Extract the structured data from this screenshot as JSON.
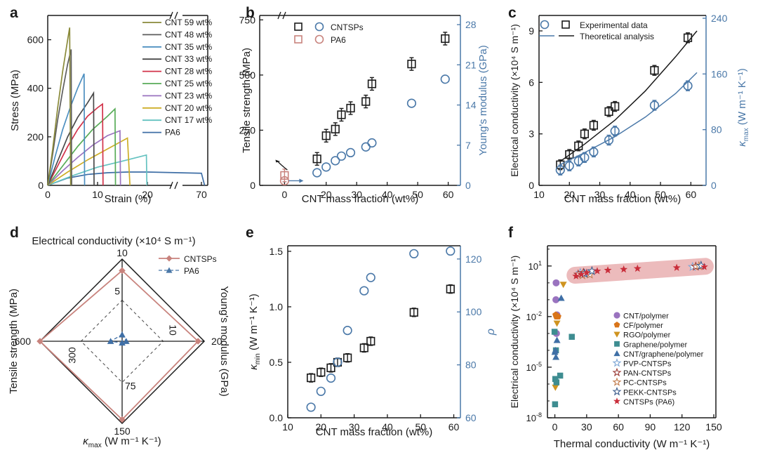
{
  "panel_labels": [
    "a",
    "b",
    "c",
    "d",
    "e",
    "f"
  ],
  "colors": {
    "black": "#1a1a1a",
    "blue": "#4a78a8",
    "pink": "#c8837d",
    "rose": "#b76f6c",
    "star": "#c92d3a",
    "band": "#eab4b5"
  },
  "chart_data": [
    {
      "id": "a",
      "type": "line",
      "xlabel": "Strain (%)",
      "ylabel": "Stress (MPa)",
      "xticks": [
        "0",
        "10",
        "20",
        "70"
      ],
      "yticks": [
        "0",
        "200",
        "400",
        "600"
      ],
      "xlim": [
        0,
        72
      ],
      "ylim": [
        0,
        700
      ],
      "axis_break": "x between 20 and 70",
      "legend_position": "top-right",
      "series": [
        {
          "name": "CNT 59 wt%",
          "color": "#8a8a3a",
          "x": [
            0,
            1,
            2,
            3,
            4,
            4.4,
            4.6
          ],
          "y": [
            0,
            150,
            320,
            470,
            600,
            650,
            0
          ]
        },
        {
          "name": "CNT 48 wt%",
          "color": "#5e5e5e",
          "x": [
            0,
            1,
            2,
            3,
            4,
            4.7,
            4.8
          ],
          "y": [
            0,
            130,
            270,
            390,
            500,
            560,
            0
          ]
        },
        {
          "name": "CNT 35 wt%",
          "color": "#4d8fc0",
          "x": [
            0,
            1.5,
            3,
            4.5,
            6,
            7.3,
            7.4
          ],
          "y": [
            0,
            120,
            230,
            320,
            400,
            460,
            0
          ]
        },
        {
          "name": "CNT 33 wt%",
          "color": "#4a4a4a",
          "x": [
            0,
            2,
            4,
            6,
            8,
            9.2,
            9.3
          ],
          "y": [
            0,
            100,
            200,
            280,
            340,
            380,
            0
          ]
        },
        {
          "name": "CNT 28 wt%",
          "color": "#d2334a",
          "x": [
            0,
            2,
            4,
            6,
            8,
            10,
            11,
            11.1
          ],
          "y": [
            0,
            80,
            160,
            230,
            285,
            320,
            335,
            0
          ]
        },
        {
          "name": "CNT 25 wt%",
          "color": "#58ac58",
          "x": [
            0,
            3,
            6,
            9,
            12,
            13.5,
            13.6
          ],
          "y": [
            0,
            80,
            160,
            230,
            285,
            315,
            0
          ]
        },
        {
          "name": "CNT 23 wt%",
          "color": "#9a73bf",
          "x": [
            0,
            3,
            6,
            9,
            12,
            14.5,
            14.6
          ],
          "y": [
            0,
            60,
            115,
            165,
            205,
            225,
            0
          ]
        },
        {
          "name": "CNT 20 wt%",
          "color": "#cdae28",
          "x": [
            0,
            4,
            8,
            12,
            16,
            16.5
          ],
          "y": [
            0,
            55,
            105,
            150,
            195,
            0
          ]
        },
        {
          "name": "CNT 17 wt%",
          "color": "#64c2c0",
          "x": [
            0,
            5,
            10,
            15,
            19.8,
            19.9
          ],
          "y": [
            0,
            40,
            75,
            100,
            125,
            0
          ]
        },
        {
          "name": "PA6",
          "color": "#3f6fa6",
          "x": [
            0,
            4,
            8,
            12,
            16,
            20,
            70,
            71
          ],
          "y": [
            0,
            30,
            45,
            52,
            55,
            55,
            50,
            0
          ]
        }
      ]
    },
    {
      "id": "b",
      "type": "scatter",
      "xlabel": "CNT mass fraction (wt%)",
      "ylabel": "Tensile strength (MPa)",
      "y2label": "Young's modulus (GPa)",
      "xticks": [
        "0",
        "20",
        "30",
        "40",
        "50",
        "60"
      ],
      "yticks": [
        "0",
        "250",
        "500",
        "750"
      ],
      "y2ticks": [
        "0",
        "7",
        "14",
        "21",
        "28"
      ],
      "xlim": [
        -3,
        64
      ],
      "ylim": [
        0,
        770
      ],
      "y2lim": [
        0,
        29.6
      ],
      "legend_position": "top-left",
      "series": [
        {
          "name": "CNTSPs",
          "marker": "square",
          "color": "#1a1a1a",
          "axis": "y",
          "x": [
            17,
            20,
            23,
            25,
            28,
            33,
            35,
            48,
            59
          ],
          "y": [
            120,
            225,
            255,
            320,
            350,
            380,
            460,
            550,
            665
          ]
        },
        {
          "name": "CNTSPs",
          "marker": "circle",
          "color": "#4a78a8",
          "axis": "y2",
          "x": [
            17,
            20,
            23,
            25,
            28,
            33,
            35,
            48,
            59
          ],
          "y": [
            2.2,
            3.2,
            4.3,
            5.1,
            5.7,
            6.7,
            7.4,
            14.3,
            18.5
          ]
        },
        {
          "name": "PA6",
          "marker": "square",
          "color": "#c8837d",
          "axis": "y",
          "x": [
            0
          ],
          "y": [
            45
          ]
        },
        {
          "name": "PA6",
          "marker": "circle",
          "color": "#c8837d",
          "axis": "y2",
          "x": [
            0
          ],
          "y": [
            0.8
          ]
        }
      ]
    },
    {
      "id": "c",
      "type": "scatter",
      "xlabel": "CNT mass fraction (wt%)",
      "ylabel": "Electrical conductivity (×10⁴ S m⁻¹)",
      "y2label_prefix": "κ",
      "y2label_sub": "max",
      "y2label_rest": " (W m⁻¹ K⁻¹)",
      "xticks": [
        "10",
        "20",
        "30",
        "40",
        "50",
        "60"
      ],
      "yticks": [
        "0",
        "3",
        "6",
        "9"
      ],
      "y2ticks": [
        "0",
        "80",
        "160",
        "240"
      ],
      "xlim": [
        10,
        65
      ],
      "ylim": [
        0,
        9.9
      ],
      "y2lim": [
        0,
        240
      ],
      "legend_position": "top",
      "legend": [
        "Experimental data",
        "Theoretical analysis"
      ],
      "series": [
        {
          "name": "Experimental data",
          "marker": "square",
          "color": "#1a1a1a",
          "x": [
            17,
            20,
            23,
            25,
            28,
            33,
            35,
            48,
            59
          ],
          "y": [
            1.2,
            1.8,
            2.3,
            3.0,
            3.5,
            4.3,
            4.6,
            6.7,
            8.6
          ]
        },
        {
          "name": "Experimental data",
          "marker": "circle",
          "color": "#4a78a8",
          "axis": "y2",
          "x": [
            17,
            20,
            23,
            25,
            28,
            33,
            35,
            48,
            59
          ],
          "y": [
            22,
            28,
            35,
            40,
            48,
            65,
            78,
            115,
            143
          ]
        },
        {
          "name": "Theoretical analysis",
          "type": "line",
          "color": "#1a1a1a",
          "x": [
            17,
            25,
            35,
            45,
            55,
            62
          ],
          "y": [
            1.4,
            2.4,
            3.8,
            5.5,
            7.5,
            9.0
          ]
        },
        {
          "name": "Theoretical analysis",
          "type": "line",
          "color": "#4a78a8",
          "axis": "y2",
          "x": [
            17,
            25,
            35,
            45,
            55,
            62
          ],
          "y": [
            30,
            47,
            70,
            98,
            132,
            162
          ]
        }
      ]
    },
    {
      "id": "d",
      "type": "radar",
      "axes": [
        {
          "label": "Electrical conductivity (×10⁴ S m⁻¹)",
          "ticks": [
            "5",
            "10"
          ]
        },
        {
          "label": "Young's modulus (GPa)",
          "ticks": [
            "10",
            "20"
          ]
        },
        {
          "label_prefix": "κ",
          "label_sub": "max",
          "label_rest": " (W m⁻¹ K⁻¹)",
          "ticks": [
            "75",
            "150"
          ]
        },
        {
          "label": "Tensile strength (MPa)",
          "ticks": [
            "300",
            "600"
          ]
        }
      ],
      "legend_position": "top-right",
      "series": [
        {
          "name": "CNTSPs",
          "color": "#c8837d",
          "marker": "diamond",
          "values": [
            0.86,
            0.925,
            0.953,
            1.0
          ]
        },
        {
          "name": "PA6",
          "color": "#3f6fa6",
          "marker": "triangle",
          "values": [
            0.08,
            0.05,
            0.02,
            0.14
          ]
        }
      ]
    },
    {
      "id": "e",
      "type": "scatter",
      "xlabel": "CNT mass fraction (wt%)",
      "ylabel_prefix": "κ",
      "ylabel_sub": "min",
      "ylabel_rest": " (W m⁻¹ K⁻¹)",
      "y2label": "ρ",
      "xticks": [
        "10",
        "20",
        "30",
        "40",
        "50",
        "60"
      ],
      "yticks": [
        "0.0",
        "0.5",
        "1.0",
        "1.5"
      ],
      "y2ticks": [
        "60",
        "80",
        "100",
        "120"
      ],
      "xlim": [
        10,
        62
      ],
      "ylim": [
        0,
        1.55
      ],
      "y2lim": [
        60,
        125
      ],
      "series": [
        {
          "name": "κmin",
          "marker": "square",
          "color": "#1a1a1a",
          "x": [
            17,
            20,
            23,
            25,
            28,
            33,
            35,
            48,
            59
          ],
          "y": [
            0.36,
            0.41,
            0.45,
            0.5,
            0.54,
            0.63,
            0.69,
            0.95,
            1.16
          ]
        },
        {
          "name": "ρ",
          "marker": "circle",
          "color": "#4a78a8",
          "axis": "y2",
          "x": [
            17,
            20,
            23,
            25,
            28,
            33,
            35,
            48,
            59
          ],
          "y": [
            64,
            70,
            75,
            81,
            93,
            108,
            113,
            122,
            123
          ]
        }
      ]
    },
    {
      "id": "f",
      "type": "scatter",
      "xlabel": "Thermal conductivity (W m⁻¹ K⁻¹)",
      "ylabel": "Electrical conductivity (×10⁴ S m⁻¹)",
      "xticks": [
        "0",
        "30",
        "60",
        "90",
        "120",
        "150"
      ],
      "yticks": [
        {
          "base": "10",
          "exp": "-8"
        },
        {
          "base": "10",
          "exp": "-5"
        },
        {
          "base": "10",
          "exp": "-2"
        },
        {
          "base": "10",
          "exp": "1"
        }
      ],
      "xlim": [
        -7,
        152
      ],
      "ylim_log10": [
        -8,
        2.2
      ],
      "yscale": "log",
      "legend_position": "lower-right",
      "series": [
        {
          "name": "CNT/polymer",
          "marker": "circle",
          "color": "#9a73bf",
          "x": [
            1,
            2,
            1.5,
            1.2
          ],
          "y_log10": [
            -1,
            -1.9,
            -3,
            0
          ]
        },
        {
          "name": "CF/polymer",
          "marker": "pentagon",
          "color": "#d9751a",
          "x": [
            1.5,
            3,
            0.8
          ],
          "y_log10": [
            -2,
            -2,
            -1.9
          ]
        },
        {
          "name": "RGO/polymer",
          "marker": "triangle-down",
          "color": "#cf9420",
          "x": [
            8,
            2,
            0.5
          ],
          "y_log10": [
            -0.1,
            -2.4,
            -6.2
          ]
        },
        {
          "name": "Graphene/polymer",
          "marker": "square",
          "color": "#3e8d91",
          "x": [
            -0.3,
            1,
            5,
            16,
            0.2,
            0.4,
            1.5
          ],
          "y_log10": [
            -2.9,
            -4,
            -5.5,
            -3.2,
            -7.2,
            -5.7,
            -5.9
          ]
        },
        {
          "name": "CNT/graphene/polymer",
          "marker": "triangle",
          "color": "#3f6fa6",
          "x": [
            6,
            1,
            0.5,
            0,
            2
          ],
          "y_log10": [
            -0.9,
            -4.4,
            -4,
            -4.1,
            -3.4
          ]
        },
        {
          "name": "PVP-CNTSPs",
          "marker": "star-open",
          "color": "#7fa7d6",
          "x": [
            24,
            30,
            130
          ],
          "y_log10": [
            0.6,
            0.55,
            0.95
          ]
        },
        {
          "name": "PAN-CNTSPs",
          "marker": "star-open",
          "color": "#9a3b36",
          "x": [
            22,
            27,
            133
          ],
          "y_log10": [
            0.5,
            0.6,
            0.97
          ]
        },
        {
          "name": "PC-CNTSPs",
          "marker": "star-open",
          "color": "#c27d4e",
          "x": [
            26,
            33,
            136
          ],
          "y_log10": [
            0.45,
            0.5,
            1.0
          ]
        },
        {
          "name": "PEKK-CNTSPs",
          "marker": "star-open",
          "color": "#3a5a8a",
          "x": [
            28,
            35,
            138
          ],
          "y_log10": [
            0.55,
            0.7,
            1.02
          ]
        },
        {
          "name": "CNTSPs (PA6)",
          "marker": "star",
          "color": "#c92d3a",
          "x": [
            20,
            25,
            30,
            40,
            50,
            65,
            78,
            115,
            141
          ],
          "y_log10": [
            0.4,
            0.5,
            0.6,
            0.7,
            0.75,
            0.8,
            0.85,
            0.9,
            0.95
          ]
        }
      ]
    }
  ]
}
